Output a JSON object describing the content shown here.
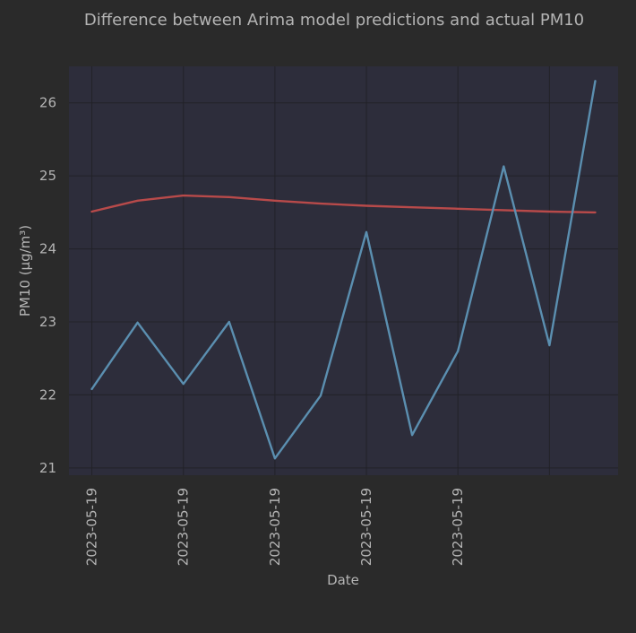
{
  "chart_data": {
    "type": "line",
    "title": "Difference between Arima model predictions and actual PM10",
    "xlabel": "Date",
    "ylabel": "PM10 (µg/m³)",
    "x_index": [
      0,
      1,
      2,
      3,
      4,
      5,
      6,
      7,
      8,
      9,
      10,
      11
    ],
    "xticks": [
      {
        "index": 0,
        "label": "2023-05-19"
      },
      {
        "index": 2,
        "label": "2023-05-19"
      },
      {
        "index": 4,
        "label": "2023-05-19"
      },
      {
        "index": 6,
        "label": "2023-05-19"
      },
      {
        "index": 8,
        "label": "2023-05-19"
      },
      {
        "index": 10,
        "label": ""
      }
    ],
    "yticks": [
      21,
      22,
      23,
      24,
      25,
      26
    ],
    "xlim": [
      -0.5,
      11.5
    ],
    "ylim": [
      20.9,
      26.5
    ],
    "grid": true,
    "legend": "none",
    "series": [
      {
        "color": "#b84a4a",
        "values": [
          24.51,
          24.66,
          24.73,
          24.71,
          24.66,
          24.62,
          24.59,
          24.57,
          24.55,
          24.53,
          24.51,
          24.5
        ]
      },
      {
        "color": "#5b8fb0",
        "values": [
          22.08,
          22.99,
          22.15,
          23.0,
          21.13,
          21.99,
          24.23,
          21.45,
          22.6,
          25.13,
          22.68,
          26.3
        ]
      }
    ]
  },
  "colors": {
    "page_background": "#2a2a2a",
    "plot_background": "#2d2d3b",
    "grid": "#222228",
    "text": "#b4b4b4"
  }
}
